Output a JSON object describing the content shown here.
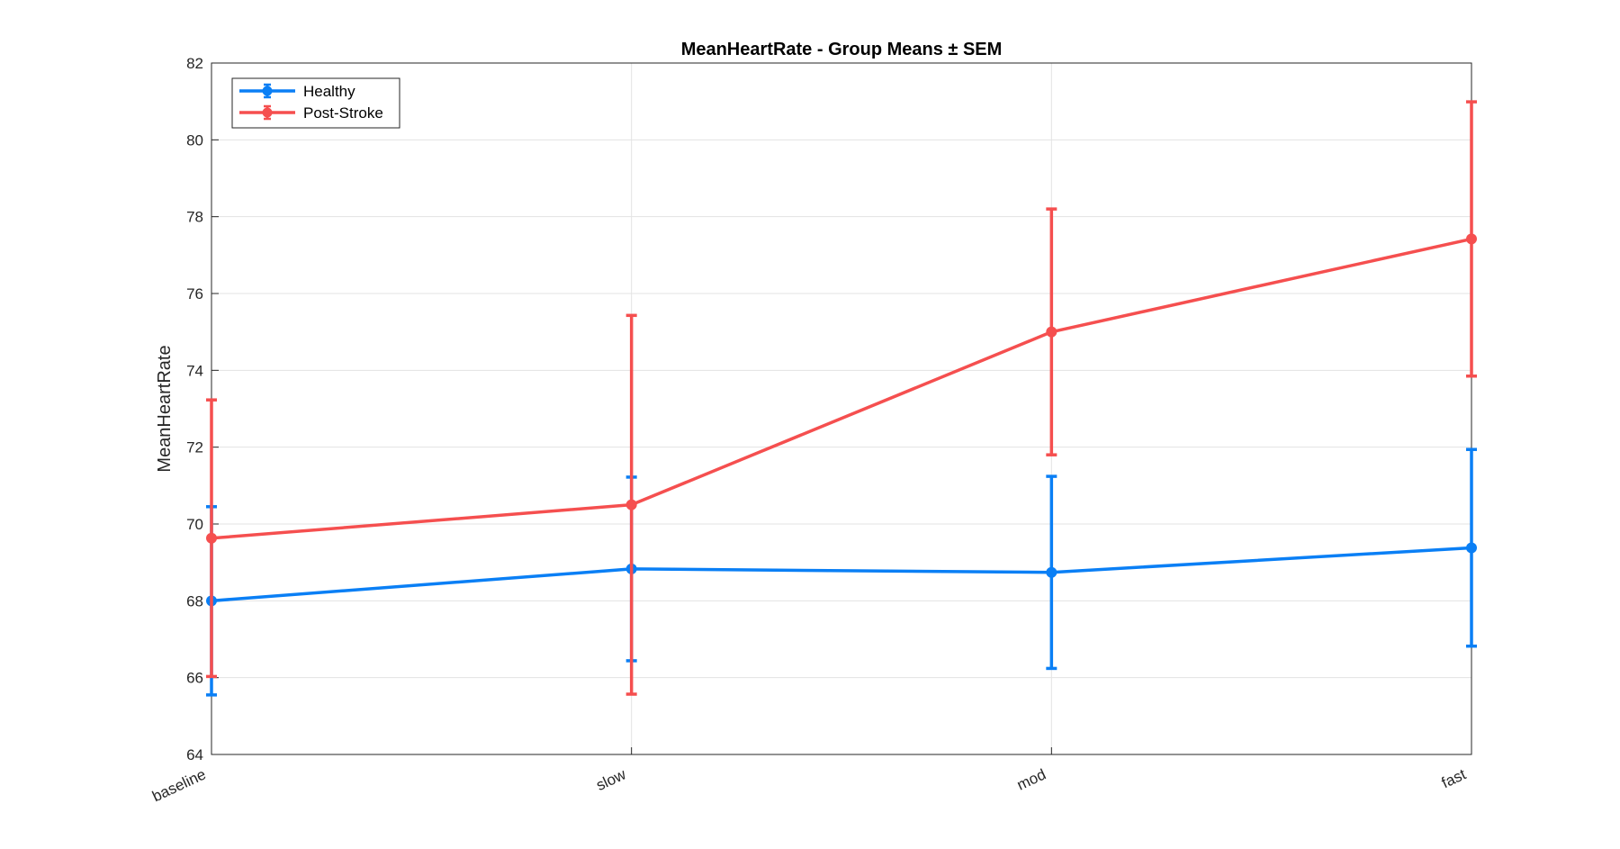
{
  "chart_data": {
    "type": "line",
    "title": "MeanHeartRate - Group Means ± SEM",
    "xlabel": "",
    "ylabel": "MeanHeartRate",
    "categories": [
      "baseline",
      "slow",
      "mod",
      "fast"
    ],
    "ylim": [
      64,
      82
    ],
    "yticks": [
      "64",
      "66",
      "68",
      "70",
      "72",
      "74",
      "76",
      "78",
      "80",
      "82"
    ],
    "grid": true,
    "legend_position": "top-left",
    "error_bars": "SEM",
    "series": [
      {
        "name": "Healthy",
        "color": "#0a7ff5",
        "values": [
          68.0,
          68.83,
          68.74,
          69.38
        ],
        "error": [
          2.45,
          2.39,
          2.5,
          2.56
        ]
      },
      {
        "name": "Post-Stroke",
        "color": "#f54f4f",
        "values": [
          69.63,
          70.5,
          75.0,
          77.42
        ],
        "error": [
          3.6,
          4.93,
          3.2,
          3.57
        ]
      }
    ]
  }
}
